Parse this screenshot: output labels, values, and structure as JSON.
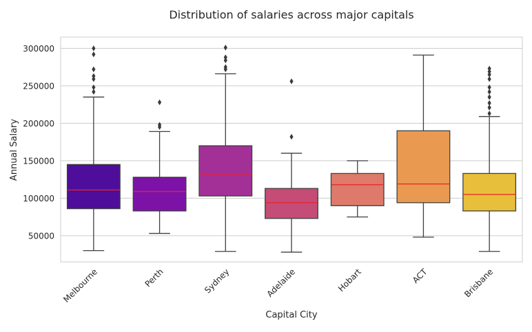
{
  "chart_data": {
    "type": "box",
    "title": "Distribution of salaries across major capitals",
    "xlabel": "Capital City",
    "ylabel": "Annual Salary",
    "ylim": [
      15000,
      315000
    ],
    "yticks": [
      50000,
      100000,
      150000,
      200000,
      250000,
      300000
    ],
    "ytick_labels": [
      "50000",
      "100000",
      "150000",
      "200000",
      "250000",
      "300000"
    ],
    "grid": true,
    "median_color": "#e8202a",
    "categories": [
      "Melbourne",
      "Perth",
      "Sydney",
      "Adelaide",
      "Hobart",
      "ACT",
      "Brisbane"
    ],
    "boxes": [
      {
        "category": "Melbourne",
        "color": "#4e0d9a",
        "whisker_low": 30000,
        "q1": 86000,
        "median": 111000,
        "q3": 145000,
        "whisker_high": 235000,
        "outliers": [
          242000,
          248000,
          259000,
          263000,
          272000,
          292000,
          300000
        ]
      },
      {
        "category": "Perth",
        "color": "#7d13a6",
        "whisker_low": 53000,
        "q1": 83000,
        "median": 109000,
        "q3": 128000,
        "whisker_high": 189000,
        "outliers": [
          195000,
          198000,
          228000
        ]
      },
      {
        "category": "Sydney",
        "color": "#a23097",
        "whisker_low": 29000,
        "q1": 103000,
        "median": 131000,
        "q3": 170000,
        "whisker_high": 266000,
        "outliers": [
          272000,
          275000,
          284000,
          288000,
          301000
        ]
      },
      {
        "category": "Adelaide",
        "color": "#c54c77",
        "whisker_low": 28000,
        "q1": 73000,
        "median": 94000,
        "q3": 113000,
        "whisker_high": 160000,
        "outliers": [
          182000,
          256000
        ]
      },
      {
        "category": "Hobart",
        "color": "#dd7a6b",
        "whisker_low": 75000,
        "q1": 90000,
        "median": 118000,
        "q3": 133000,
        "whisker_high": 150000,
        "outliers": []
      },
      {
        "category": "ACT",
        "color": "#e99a50",
        "whisker_low": 48000,
        "q1": 94000,
        "median": 119000,
        "q3": 190000,
        "whisker_high": 291000,
        "outliers": []
      },
      {
        "category": "Brisbane",
        "color": "#e8bf3b",
        "whisker_low": 29000,
        "q1": 83000,
        "median": 105000,
        "q3": 133000,
        "whisker_high": 209000,
        "outliers": [
          213000,
          221000,
          227000,
          235000,
          242000,
          248000,
          259000,
          265000,
          269000,
          273000
        ]
      }
    ]
  }
}
